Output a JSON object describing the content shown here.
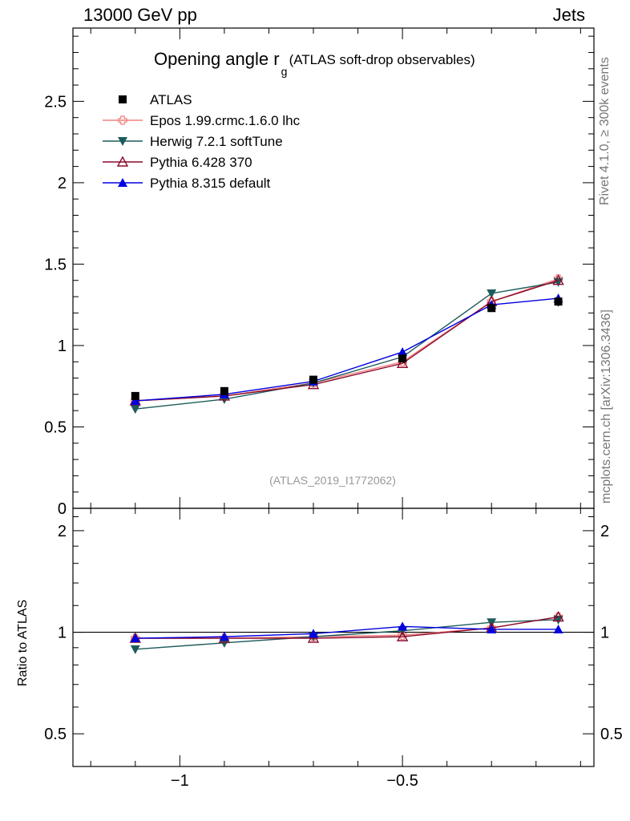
{
  "header": {
    "energy_label": "13000 GeV pp",
    "process_label": "Jets",
    "rivet_label": "Rivet 4.1.0, ≥ 300k events",
    "mcplots_label": "mcplots.cern.ch [arXiv:1306.3436]"
  },
  "chart_data": [
    {
      "type": "line",
      "title": "Opening angle r",
      "title_subscript": "g",
      "subtitle": "(ATLAS soft-drop observables)",
      "analysis_id": "(ATLAS_2019_I1772062)",
      "xlabel": "",
      "ylabel": "",
      "xlim": [
        -1.24,
        -0.07
      ],
      "ylim": [
        0,
        2.95
      ],
      "yticks": [
        0,
        0.5,
        1,
        1.5,
        2,
        2.5
      ],
      "ytick_labels": [
        "0",
        "0.5",
        "1",
        "1.5",
        "2",
        "2.5"
      ],
      "x": [
        -1.1,
        -0.9,
        -0.7,
        -0.5,
        -0.3,
        -0.15
      ],
      "series": [
        {
          "name": "ATLAS",
          "color": "#000000",
          "marker": "square",
          "values": [
            0.69,
            0.72,
            0.79,
            0.92,
            1.23,
            1.27
          ],
          "errors": [
            0.02,
            0.02,
            0.02,
            0.02,
            0.02,
            0.03
          ]
        },
        {
          "name": "Epos 1.99.crmc.1.6.0 lhc",
          "color": "#f08080",
          "marker": "open-cross",
          "values": [
            0.66,
            0.69,
            0.77,
            0.9,
            1.27,
            1.41
          ]
        },
        {
          "name": "Herwig 7.2.1 softTune",
          "color": "#1e5c5c",
          "marker": "triangle-down",
          "values": [
            0.61,
            0.67,
            0.77,
            0.93,
            1.32,
            1.39
          ]
        },
        {
          "name": "Pythia 6.428 370",
          "color": "#8b0a2a",
          "marker": "open-triangle",
          "values": [
            0.66,
            0.69,
            0.76,
            0.89,
            1.27,
            1.4
          ]
        },
        {
          "name": "Pythia 8.315 default",
          "color": "#0000e0",
          "marker": "triangle",
          "values": [
            0.66,
            0.7,
            0.78,
            0.96,
            1.25,
            1.29
          ]
        }
      ]
    },
    {
      "type": "line",
      "ylabel": "Ratio to ATLAS",
      "xlim": [
        -1.24,
        -0.07
      ],
      "ylim": [
        0.4,
        2.33
      ],
      "yticks": [
        0.5,
        1,
        2
      ],
      "ytick_labels": [
        "0.5",
        "1",
        "2"
      ],
      "xticks": [
        -1,
        -0.5
      ],
      "xtick_labels": [
        "−1",
        "−0.5"
      ],
      "x": [
        -1.1,
        -0.9,
        -0.7,
        -0.5,
        -0.3,
        -0.15
      ],
      "series": [
        {
          "name": "Epos 1.99.crmc.1.6.0 lhc",
          "values": [
            0.96,
            0.96,
            0.97,
            0.98,
            1.03,
            1.11
          ]
        },
        {
          "name": "Herwig 7.2.1 softTune",
          "values": [
            0.89,
            0.93,
            0.97,
            1.01,
            1.07,
            1.09
          ]
        },
        {
          "name": "Pythia 6.428 370",
          "values": [
            0.96,
            0.96,
            0.96,
            0.97,
            1.03,
            1.11
          ]
        },
        {
          "name": "Pythia 8.315 default",
          "values": [
            0.96,
            0.97,
            0.99,
            1.04,
            1.02,
            1.02
          ]
        }
      ]
    }
  ]
}
